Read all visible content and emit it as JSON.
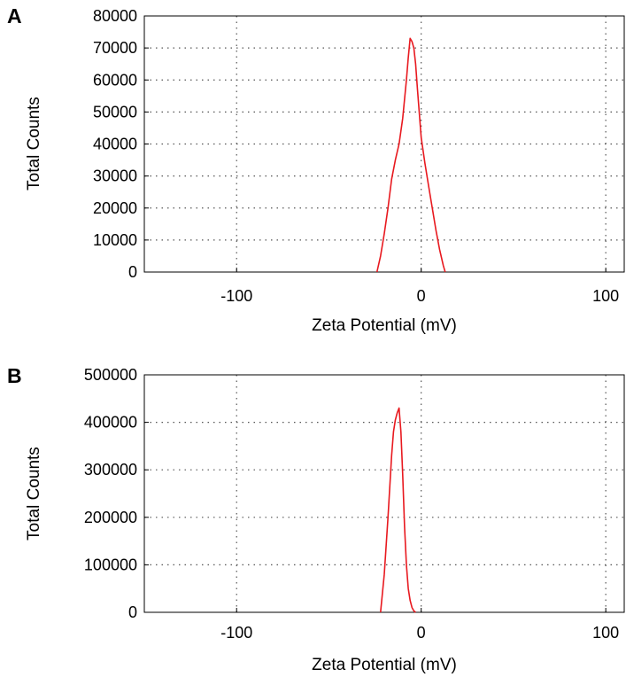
{
  "chart_data": [
    {
      "panel_label": "A",
      "type": "line",
      "xlabel": "Zeta Potential (mV)",
      "ylabel": "Total Counts",
      "xlim": [
        -150,
        110
      ],
      "ylim": [
        0,
        80000
      ],
      "xticks": [
        -100,
        0,
        100
      ],
      "xtick_labels": [
        "-100",
        "0",
        "100"
      ],
      "yticks": [
        0,
        10000,
        20000,
        30000,
        40000,
        50000,
        60000,
        70000,
        80000
      ],
      "ytick_labels": [
        "0",
        "10000",
        "20000",
        "30000",
        "40000",
        "50000",
        "60000",
        "70000",
        "80000"
      ],
      "grid": true,
      "line_color": "#e8191f",
      "series": [
        {
          "x": [
            -24,
            -22,
            -20,
            -18,
            -16,
            -14,
            -12,
            -10,
            -8,
            -7,
            -6,
            -5,
            -4,
            -3,
            -2,
            0,
            2,
            4,
            6,
            8,
            10,
            12,
            13
          ],
          "y": [
            0,
            5000,
            12000,
            20000,
            29000,
            35000,
            40000,
            48000,
            60000,
            67000,
            73000,
            72000,
            70000,
            65000,
            57000,
            42000,
            34000,
            27000,
            20000,
            13000,
            7000,
            2000,
            0
          ]
        }
      ]
    },
    {
      "panel_label": "B",
      "type": "line",
      "xlabel": "Zeta Potential (mV)",
      "ylabel": "Total Counts",
      "xlim": [
        -150,
        110
      ],
      "ylim": [
        0,
        500000
      ],
      "xticks": [
        -100,
        0,
        100
      ],
      "xtick_labels": [
        "-100",
        "0",
        "100"
      ],
      "yticks": [
        0,
        100000,
        200000,
        300000,
        400000,
        500000
      ],
      "ytick_labels": [
        "0",
        "100000",
        "200000",
        "300000",
        "400000",
        "500000"
      ],
      "grid": true,
      "line_color": "#e8191f",
      "series": [
        {
          "x": [
            -22,
            -20,
            -18,
            -16,
            -15,
            -14,
            -13,
            -12,
            -11,
            -10,
            -9,
            -8,
            -7,
            -6,
            -5,
            -4,
            -3
          ],
          "y": [
            0,
            80000,
            200000,
            330000,
            380000,
            405000,
            420000,
            430000,
            380000,
            290000,
            180000,
            100000,
            50000,
            25000,
            10000,
            3000,
            0
          ]
        }
      ]
    }
  ]
}
